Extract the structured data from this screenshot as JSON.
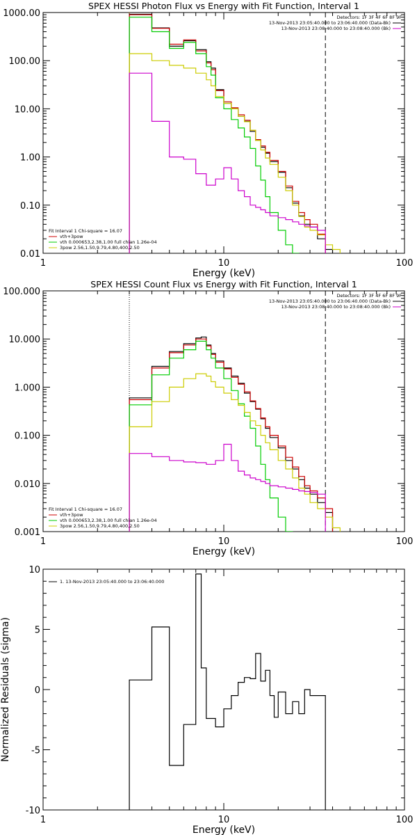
{
  "chart_data": [
    {
      "type": "line",
      "title": "SPEX HESSI Photon Flux vs Energy with Fit Function, Interval 1",
      "xlabel": "Energy (keV)",
      "ylabel": "",
      "xscale": "log",
      "yscale": "log",
      "xlim": [
        1,
        100
      ],
      "ylim": [
        0.01,
        1000
      ],
      "xticks": [
        1,
        10,
        100
      ],
      "xtick_labels": [
        "1",
        "10",
        "100"
      ],
      "yticks": [
        0.01,
        0.1,
        1,
        10,
        100,
        1000
      ],
      "ytick_labels": [
        "0.01",
        "0.10",
        "1.00",
        "10.00",
        "100.00",
        "1000.00"
      ],
      "detectors_label": "Detectors: 1F 3F 4F 6F 8F 9F",
      "legend_top_right": [
        {
          "text": "13-Nov-2013 23:05:40.000 to 23:06:40.000 (Data-Bk)",
          "color": "#000000"
        },
        {
          "text": "13-Nov-2013 23:08:40.000 to 23:08:40.000 (Bk)",
          "color": "#cc00cc"
        }
      ],
      "fit_header": "Fit Interval 1    Chi-square = 16.07",
      "legend_bottom_left": [
        {
          "text": "vth+3pow",
          "color": "#cc0000"
        },
        {
          "text": "vth 0.000653,2.38,1.00   full chian 1.26e-04",
          "color": "#00cc00"
        },
        {
          "text": "3pow 2.56,1.50,9.79,4.80,400,2.50",
          "color": "#cccc00"
        }
      ],
      "vlines": [
        {
          "x": 3,
          "style": "dotted",
          "color": "#ff8800"
        },
        {
          "x": 36.5,
          "style": "dashed",
          "color": "#000000"
        }
      ],
      "bin_edges": [
        3,
        3.5,
        4,
        4.5,
        5,
        5.5,
        6,
        6.5,
        7,
        7.5,
        8,
        8.5,
        9,
        10,
        11,
        12,
        13,
        14,
        15,
        16,
        17,
        18,
        20,
        22,
        24,
        26,
        28,
        30,
        33,
        36.5,
        40,
        44
      ],
      "series": [
        {
          "color": "#000000",
          "values": [
            920,
            920,
            480,
            480,
            200,
            200,
            260,
            260,
            170,
            170,
            95,
            70,
            25,
            13,
            10,
            7,
            5.5,
            3.4,
            2.2,
            1.6,
            1.2,
            0.8,
            0.48,
            0.23,
            0.11,
            0.06,
            0.04,
            0.035,
            0.02,
            0.012,
            null
          ]
        },
        {
          "color": "#cc0000",
          "values": [
            900,
            900,
            470,
            470,
            220,
            220,
            270,
            270,
            160,
            160,
            90,
            65,
            24,
            14,
            10.5,
            7.5,
            5.8,
            3.6,
            2.3,
            1.7,
            1.25,
            0.85,
            0.5,
            0.25,
            0.12,
            0.07,
            0.05,
            0.04,
            0.025,
            null,
            null
          ]
        },
        {
          "color": "#00cc00",
          "values": [
            800,
            800,
            400,
            400,
            180,
            180,
            240,
            240,
            140,
            140,
            75,
            50,
            17,
            10,
            6,
            4,
            2.6,
            1.5,
            0.65,
            0.33,
            0.15,
            0.07,
            0.03,
            0.015,
            0.01,
            null,
            null,
            null,
            null,
            null,
            null
          ]
        },
        {
          "color": "#cccc00",
          "values": [
            140,
            140,
            100,
            100,
            80,
            80,
            70,
            70,
            55,
            55,
            40,
            30,
            18,
            13,
            10,
            7,
            5.4,
            3.6,
            2.2,
            1.4,
            0.95,
            0.7,
            0.38,
            0.2,
            0.1,
            0.058,
            0.035,
            0.03,
            0.024,
            0.015,
            0.012
          ]
        },
        {
          "color": "#cc00cc",
          "values": [
            55,
            55,
            5.5,
            5.5,
            1,
            1,
            0.9,
            0.9,
            0.45,
            0.45,
            0.26,
            0.26,
            0.35,
            0.6,
            0.35,
            0.2,
            0.15,
            0.1,
            0.09,
            0.08,
            0.07,
            0.06,
            0.055,
            0.05,
            0.045,
            0.04,
            0.037,
            0.035,
            0.03,
            null,
            null
          ]
        }
      ]
    },
    {
      "type": "line",
      "title": "SPEX HESSI Count Flux vs Energy with Fit Function, Interval 1",
      "xlabel": "Energy (keV)",
      "ylabel": "",
      "xscale": "log",
      "yscale": "log",
      "xlim": [
        1,
        100
      ],
      "ylim": [
        0.001,
        100
      ],
      "xticks": [
        1,
        10,
        100
      ],
      "xtick_labels": [
        "1",
        "10",
        "100"
      ],
      "yticks": [
        0.001,
        0.01,
        0.1,
        1,
        10,
        100
      ],
      "ytick_labels": [
        "0.001",
        "0.010",
        "0.100",
        "1.000",
        "10.000",
        "100.000"
      ],
      "detectors_label": "Detectors: 1F 3F 4F 6F 8F 9F",
      "legend_top_right": [
        {
          "text": "13-Nov-2013 23:05:40.000 to 23:06:40.000 (Data-Bk)",
          "color": "#000000"
        },
        {
          "text": "13-Nov-2013 23:08:40.000 to 23:08:40.000 (Bk)",
          "color": "#cc00cc"
        }
      ],
      "fit_header": "Fit Interval 1    Chi-square = 16.07",
      "legend_bottom_left": [
        {
          "text": "vth+3pow",
          "color": "#cc0000"
        },
        {
          "text": "vth 0.000653,2.38,1.00   full chian 1.26e-04",
          "color": "#00cc00"
        },
        {
          "text": "3pow 2.56,1.50,9.79,4.80,400,2.50",
          "color": "#cccc00"
        }
      ],
      "vlines": [
        {
          "x": 3,
          "style": "dotted",
          "color": "#000000"
        },
        {
          "x": 36.5,
          "style": "dashed",
          "color": "#000000"
        }
      ],
      "bin_edges": [
        3,
        3.5,
        4,
        4.5,
        5,
        5.5,
        6,
        6.5,
        7,
        7.5,
        8,
        8.5,
        9,
        10,
        11,
        12,
        13,
        14,
        15,
        16,
        17,
        18,
        20,
        22,
        24,
        26,
        28,
        30,
        33,
        36.5,
        40,
        44
      ],
      "series": [
        {
          "color": "#000000",
          "values": [
            0.6,
            0.6,
            2.7,
            2.7,
            5.5,
            5.5,
            8,
            8,
            10.5,
            11,
            7.5,
            5,
            3.5,
            2.5,
            1.7,
            1.2,
            0.75,
            0.5,
            0.35,
            0.22,
            0.14,
            0.09,
            0.055,
            0.03,
            0.02,
            0.012,
            0.008,
            0.006,
            0.004,
            0.0025,
            null
          ]
        },
        {
          "color": "#cc0000",
          "values": [
            0.55,
            0.55,
            2.5,
            2.5,
            5.2,
            5.2,
            7.5,
            7.5,
            10,
            10,
            7.2,
            4.8,
            3.3,
            2.4,
            1.6,
            1.15,
            0.8,
            0.52,
            0.36,
            0.23,
            0.15,
            0.1,
            0.06,
            0.035,
            0.022,
            0.014,
            0.009,
            0.007,
            0.005,
            0.003,
            null
          ]
        },
        {
          "color": "#00cc00",
          "values": [
            0.43,
            0.43,
            1.8,
            1.8,
            4,
            4,
            6,
            6,
            9,
            9,
            6,
            4,
            2.5,
            1.5,
            0.85,
            0.45,
            0.25,
            0.14,
            0.06,
            0.025,
            0.012,
            0.005,
            0.002,
            0.001,
            null,
            null,
            null,
            null,
            null,
            null,
            null
          ]
        },
        {
          "color": "#cccc00",
          "values": [
            0.15,
            0.15,
            0.5,
            0.5,
            1,
            1,
            1.5,
            1.5,
            1.9,
            1.9,
            1.7,
            1.3,
            1,
            0.75,
            0.55,
            0.42,
            0.3,
            0.2,
            0.16,
            0.1,
            0.07,
            0.05,
            0.03,
            0.02,
            0.013,
            0.008,
            0.006,
            0.004,
            0.003,
            0.002,
            0.0012
          ]
        },
        {
          "color": "#cc00cc",
          "values": [
            0.042,
            0.042,
            0.036,
            0.036,
            0.03,
            0.03,
            0.028,
            0.028,
            0.027,
            0.027,
            0.025,
            0.025,
            0.03,
            0.065,
            0.03,
            0.018,
            0.015,
            0.013,
            0.012,
            0.011,
            0.01,
            0.009,
            0.0085,
            0.008,
            0.0075,
            0.007,
            0.0068,
            0.0065,
            0.006,
            null,
            null
          ]
        }
      ]
    },
    {
      "type": "line",
      "title": "",
      "xlabel": "Energy (keV)",
      "ylabel": "Normalized Residuals (sigma)",
      "xscale": "log",
      "yscale": "linear",
      "xlim": [
        1,
        100
      ],
      "ylim": [
        -10,
        10
      ],
      "xticks": [
        1,
        10,
        100
      ],
      "xtick_labels": [
        "1",
        "10",
        "100"
      ],
      "yticks": [
        -10,
        -5,
        0,
        5,
        10
      ],
      "ytick_labels": [
        "-10",
        "-5",
        "0",
        "5",
        "10"
      ],
      "legend": [
        {
          "text": "1. 13-Nov-2013 23:05:40.000 to 23:06:40.000",
          "color": "#000000"
        }
      ],
      "bin_edges": [
        3,
        4,
        5,
        6,
        7,
        7.5,
        8,
        9,
        10,
        11,
        12,
        13,
        14,
        15,
        16,
        17,
        18,
        19,
        20,
        22,
        24,
        26,
        28,
        30,
        33,
        36.5
      ],
      "series": [
        {
          "name": "1. 13-Nov-2013 23:05:40.000 to 23:06:40.000",
          "color": "#000000",
          "values": [
            0.8,
            5.2,
            -6.3,
            -2.9,
            9.6,
            1.8,
            -2.4,
            -3.1,
            -1.6,
            -0.5,
            0.6,
            1,
            0.9,
            3,
            0.7,
            1.6,
            -0.5,
            -2.3,
            -0.2,
            -2,
            -1,
            -2,
            0.0,
            -0.5,
            -0.5
          ]
        }
      ]
    }
  ]
}
